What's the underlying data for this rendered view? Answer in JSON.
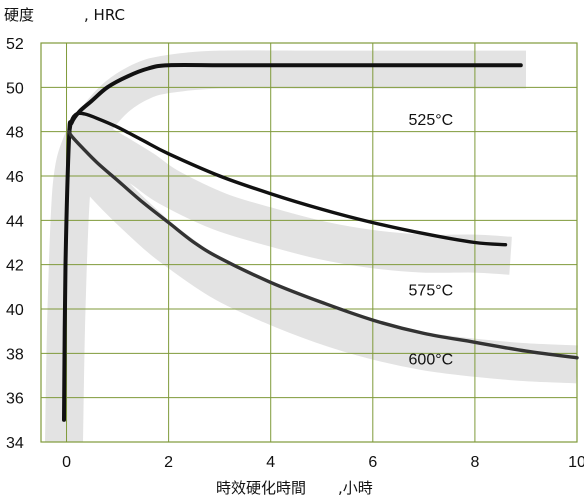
{
  "chart_data": {
    "type": "line",
    "ylabel_main": "硬度",
    "ylabel_unit": ", HRC",
    "xlabel_main": "時效硬化時間",
    "xlabel_unit": ",小時",
    "xlim": [
      -0.5,
      10
    ],
    "ylim": [
      34,
      52
    ],
    "x_ticks": [
      0,
      2,
      4,
      6,
      8,
      10
    ],
    "y_ticks": [
      34,
      36,
      38,
      40,
      42,
      44,
      46,
      48,
      50,
      52
    ],
    "grid": true,
    "colors": {
      "grid": "#7f9a3a",
      "band": "#e3e3e3",
      "line_dark": "#111111",
      "line_mid": "#333333"
    },
    "series": [
      {
        "name": "525°C",
        "x": [
          -0.05,
          -0.02,
          0.05,
          0.1,
          0.25,
          0.5,
          0.8,
          1.2,
          1.6,
          2.0,
          3.0,
          4.0,
          5.0,
          6.0,
          7.0,
          8.0,
          8.9
        ],
        "y": [
          35.0,
          42.0,
          47.8,
          48.4,
          48.9,
          49.4,
          50.0,
          50.5,
          50.85,
          51.0,
          51.0,
          51.0,
          51.0,
          51.0,
          51.0,
          51.0,
          51.0
        ]
      },
      {
        "name": "575°C",
        "x": [
          0.05,
          0.1,
          0.2,
          0.35,
          0.6,
          1.0,
          1.5,
          2.0,
          3.0,
          4.0,
          5.0,
          6.0,
          7.0,
          8.0,
          8.6
        ],
        "y": [
          47.8,
          48.5,
          48.8,
          48.8,
          48.6,
          48.2,
          47.6,
          47.0,
          46.0,
          45.2,
          44.5,
          43.9,
          43.4,
          43.0,
          42.9
        ]
      },
      {
        "name": "600°C",
        "x": [
          0.05,
          0.1,
          0.3,
          0.6,
          1.0,
          1.5,
          2.0,
          2.5,
          3.0,
          4.0,
          5.0,
          6.0,
          7.0,
          8.0,
          9.0,
          10.0
        ],
        "y": [
          48.0,
          47.8,
          47.3,
          46.6,
          45.8,
          44.8,
          43.9,
          43.0,
          42.3,
          41.2,
          40.3,
          39.5,
          38.9,
          38.5,
          38.1,
          37.8
        ]
      }
    ],
    "bands": [
      {
        "name": "525°C",
        "x": [
          -0.05,
          0.0,
          0.1,
          0.3,
          0.6,
          1.0,
          1.5,
          2.0,
          3.0,
          5.0,
          7.0,
          9.0
        ],
        "y": [
          34.0,
          40.0,
          45.5,
          47.5,
          48.6,
          49.6,
          50.3,
          50.6,
          50.8,
          50.8,
          50.8,
          50.8
        ]
      },
      {
        "name": "575°C",
        "x": [
          0.4,
          0.7,
          1.0,
          1.5,
          2.0,
          3.0,
          4.0,
          5.0,
          6.0,
          7.0,
          8.0,
          8.7
        ],
        "y": [
          47.7,
          47.4,
          47.0,
          46.3,
          45.5,
          44.4,
          43.7,
          43.1,
          42.7,
          42.5,
          42.5,
          42.4
        ]
      },
      {
        "name": "600°C",
        "x": [
          0.35,
          0.6,
          1.0,
          1.5,
          2.0,
          3.0,
          4.0,
          5.0,
          6.0,
          7.0,
          8.0,
          9.0,
          10.0
        ],
        "y": [
          46.8,
          46.0,
          45.0,
          43.9,
          42.9,
          41.3,
          40.2,
          39.3,
          38.6,
          38.1,
          37.8,
          37.6,
          37.5
        ]
      }
    ],
    "annotations": [
      {
        "text": "525°C",
        "x": 6.7,
        "y": 48.3
      },
      {
        "text": "575°C",
        "x": 6.7,
        "y": 40.6
      },
      {
        "text": "600°C",
        "x": 6.7,
        "y": 37.5
      }
    ]
  }
}
